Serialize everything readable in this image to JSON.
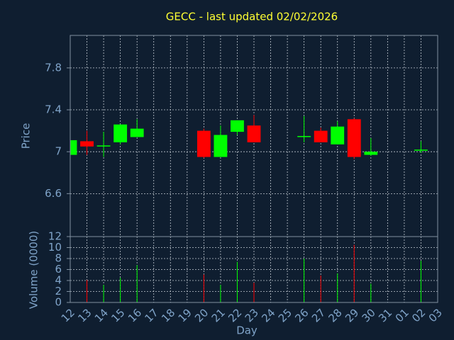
{
  "chart_data": {
    "type": "candlestick",
    "title": "GECC - last updated 02/02/2026",
    "ylabel": "Price",
    "volume_label": "Volume (0000)",
    "xlabel": "Day",
    "categories": [
      "12",
      "13",
      "14",
      "15",
      "16",
      "17",
      "18",
      "19",
      "20",
      "21",
      "22",
      "23",
      "24",
      "25",
      "26",
      "27",
      "28",
      "29",
      "30",
      "31",
      "01",
      "02",
      "03"
    ],
    "open": [
      6.97,
      7.1,
      7.05,
      7.09,
      7.14,
      null,
      null,
      null,
      7.2,
      6.95,
      7.19,
      7.25,
      null,
      null,
      7.14,
      7.2,
      7.07,
      7.31,
      6.97,
      null,
      null,
      7.01,
      null
    ],
    "high": [
      7.12,
      7.2,
      7.19,
      7.26,
      7.31,
      null,
      null,
      null,
      7.22,
      7.25,
      7.3,
      7.35,
      null,
      null,
      7.34,
      7.23,
      7.29,
      7.32,
      7.13,
      null,
      null,
      7.1,
      null
    ],
    "low": [
      6.97,
      6.97,
      6.95,
      7.07,
      7.14,
      null,
      null,
      null,
      6.94,
      6.95,
      7.16,
      7.09,
      null,
      null,
      7.09,
      7.09,
      7.07,
      6.93,
      6.96,
      null,
      null,
      6.99,
      null
    ],
    "close": [
      7.11,
      7.05,
      7.06,
      7.26,
      7.22,
      null,
      null,
      null,
      6.95,
      7.16,
      7.3,
      7.09,
      null,
      null,
      7.15,
      7.09,
      7.24,
      6.95,
      7.0,
      null,
      null,
      7.02,
      null
    ],
    "volume": [
      null,
      4.1,
      3.2,
      4.5,
      6.8,
      null,
      null,
      null,
      5.1,
      3.2,
      7.4,
      3.6,
      null,
      null,
      8.0,
      4.9,
      5.3,
      10.5,
      3.4,
      null,
      null,
      7.6,
      null
    ],
    "up_color": "#00ff00",
    "down_color": "#ff0000",
    "ylim": [
      6.19,
      8.11
    ],
    "yticks": [
      6.6,
      7,
      7.4,
      7.8
    ],
    "volume_ylim": [
      0,
      12
    ],
    "volume_yticks": [
      0,
      2,
      4,
      6,
      8,
      10,
      12
    ],
    "grid": true
  }
}
